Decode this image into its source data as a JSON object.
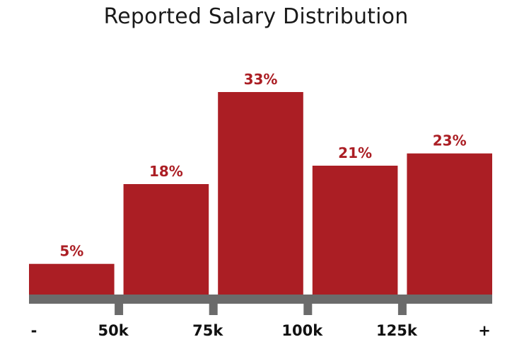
{
  "chart_data": {
    "type": "bar",
    "title": "Reported Salary Distribution",
    "categories": [
      "- to 50k",
      "50k to 75k",
      "75k to 100k",
      "100k to 125k",
      "125k to +"
    ],
    "values": [
      5,
      18,
      33,
      21,
      23
    ],
    "value_labels": [
      "5%",
      "18%",
      "33%",
      "21%",
      "23%"
    ],
    "tick_labels": [
      "-",
      "50k",
      "75k",
      "100k",
      "125k",
      "+"
    ],
    "xlabel": "",
    "ylabel": "",
    "ylim": [
      0,
      33
    ],
    "grid": false,
    "legend": "none"
  },
  "colors": {
    "bar": "#ab1e24",
    "value_label": "#ab1e24",
    "axis": "#6b6b6b",
    "tick_label": "#111111",
    "title": "#1a1a1a"
  }
}
